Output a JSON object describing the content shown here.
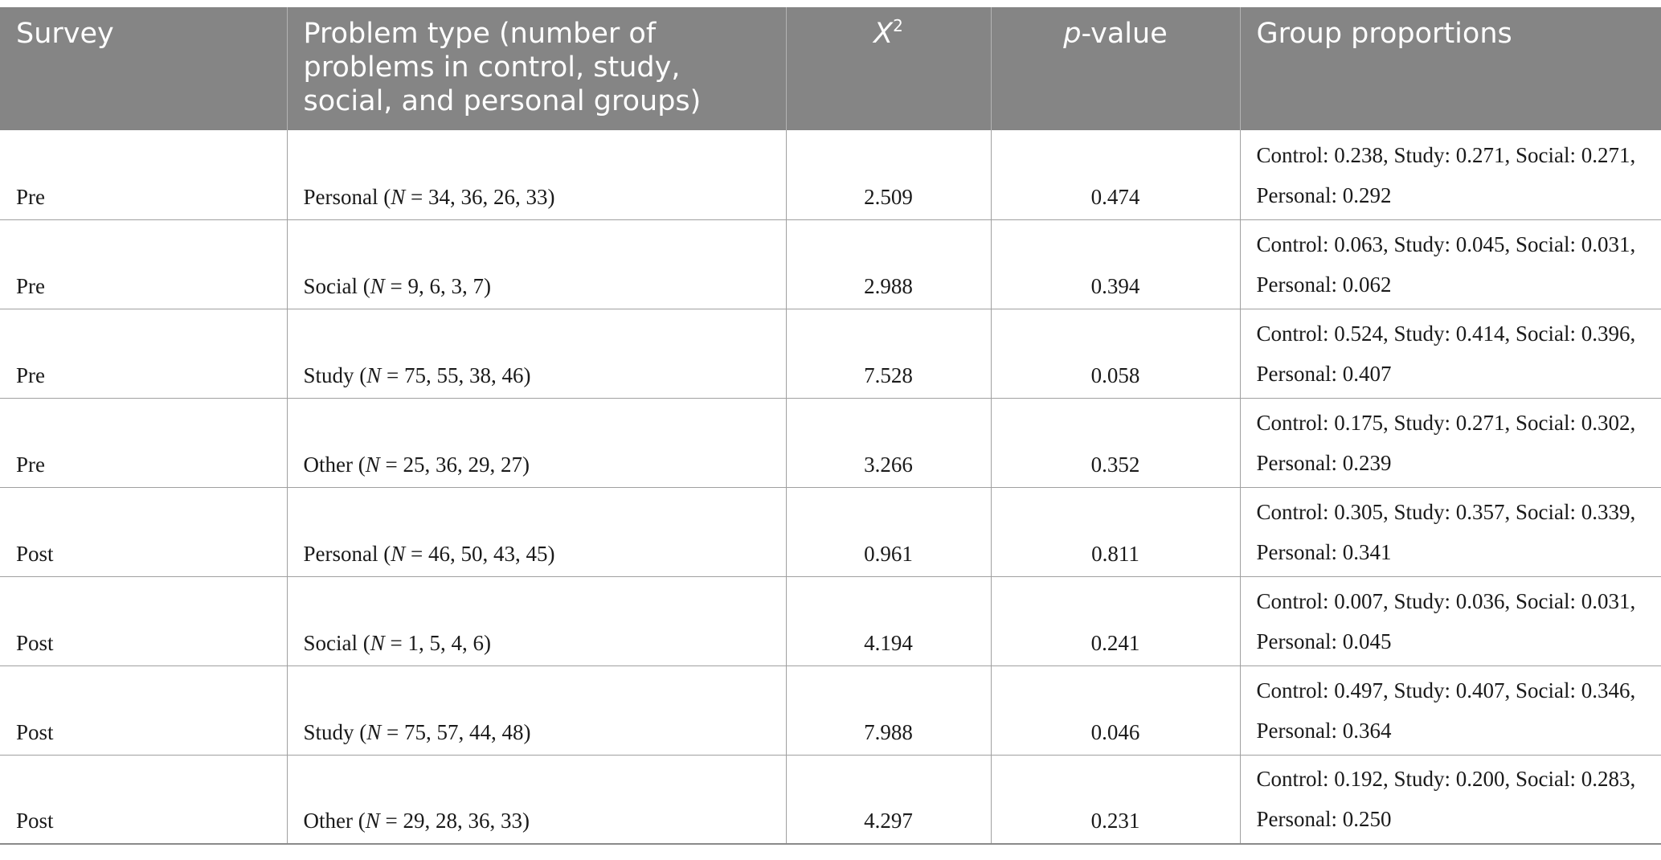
{
  "table": {
    "headers": {
      "survey": "Survey",
      "problem_type": "Problem type (number of problems in control, study, social, and personal groups)",
      "chi_square_base": "X",
      "chi_square_sup": "2",
      "p_value_p": "p",
      "p_value_rest": "-value",
      "group_proportions": "Group proportions"
    },
    "rows": [
      {
        "survey": "Pre",
        "type": "Personal",
        "n": "34, 36, 26, 33",
        "chi2": "2.509",
        "p": "0.474",
        "proportions": "Control: 0.238, Study: 0.271, Social: 0.271, Personal: 0.292"
      },
      {
        "survey": "Pre",
        "type": "Social",
        "n": "9, 6, 3, 7",
        "chi2": "2.988",
        "p": "0.394",
        "proportions": "Control: 0.063, Study: 0.045, Social: 0.031, Personal: 0.062"
      },
      {
        "survey": "Pre",
        "type": "Study",
        "n": "75, 55, 38, 46",
        "chi2": "7.528",
        "p": "0.058",
        "proportions": "Control: 0.524, Study: 0.414, Social: 0.396, Personal: 0.407"
      },
      {
        "survey": "Pre",
        "type": "Other",
        "n": "25, 36, 29, 27",
        "chi2": "3.266",
        "p": "0.352",
        "proportions": "Control: 0.175, Study: 0.271, Social: 0.302, Personal: 0.239"
      },
      {
        "survey": "Post",
        "type": "Personal",
        "n": "46, 50, 43, 45",
        "chi2": "0.961",
        "p": "0.811",
        "proportions": "Control: 0.305, Study: 0.357, Social: 0.339, Personal: 0.341"
      },
      {
        "survey": "Post",
        "type": "Social",
        "n": "1, 5, 4, 6",
        "chi2": "4.194",
        "p": "0.241",
        "proportions": "Control: 0.007, Study: 0.036, Social: 0.031, Personal: 0.045"
      },
      {
        "survey": "Post",
        "type": "Study",
        "n": "75, 57, 44, 48",
        "chi2": "7.988",
        "p": "0.046",
        "proportions": "Control: 0.497, Study: 0.407, Social: 0.346, Personal: 0.364"
      },
      {
        "survey": "Post",
        "type": "Other",
        "n": "29, 28, 36, 33",
        "chi2": "4.297",
        "p": "0.231",
        "proportions": "Control: 0.192, Study: 0.200, Social: 0.283, Personal: 0.250"
      }
    ],
    "n_label": "N",
    "colors": {
      "header_bg": "#858585",
      "header_text": "#ffffff",
      "grid": "#a0a0a0"
    }
  }
}
